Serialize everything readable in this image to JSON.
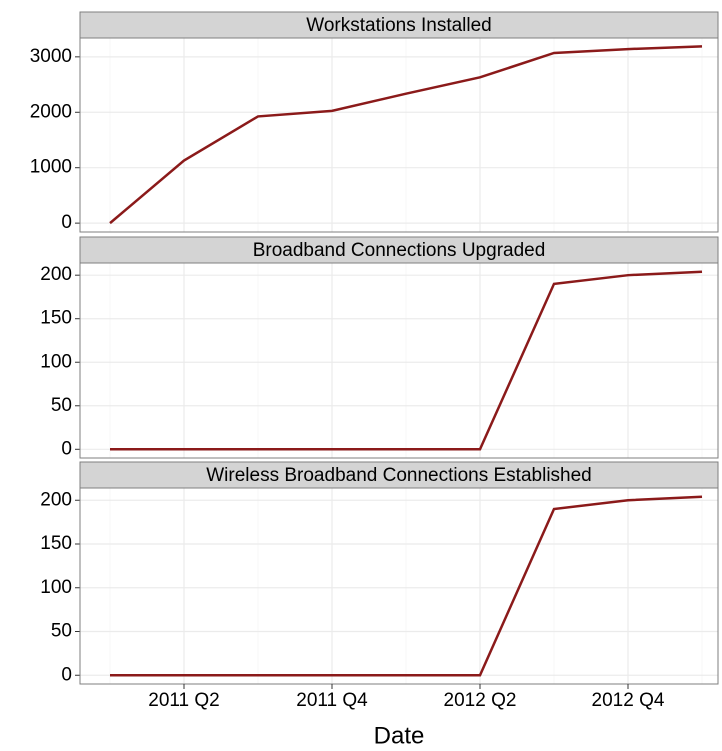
{
  "chart_data": {
    "type": "line",
    "xlabel": "Date",
    "color": "#8b1a1a",
    "grid": true,
    "categories": [
      null,
      "2011 Q2",
      null,
      "2011 Q4",
      null,
      "2012 Q2",
      null,
      "2012 Q4",
      null
    ],
    "facets": [
      {
        "title": "Workstations Installed",
        "values": [
          0,
          1130,
          1925,
          2025,
          2335,
          2630,
          3070,
          3140,
          3190
        ],
        "ylim": [
          -160,
          3340
        ],
        "yticks": [
          0,
          1000,
          2000,
          3000
        ]
      },
      {
        "title": "Broadband Connections Upgraded",
        "values": [
          0,
          0,
          0,
          0,
          0,
          0,
          190,
          200,
          204
        ],
        "ylim": [
          -10,
          214
        ],
        "yticks": [
          0,
          50,
          100,
          150,
          200
        ]
      },
      {
        "title": "Wireless Broadband Connections Established",
        "values": [
          0,
          0,
          0,
          0,
          0,
          0,
          190,
          200,
          204
        ],
        "ylim": [
          -10,
          214
        ],
        "yticks": [
          0,
          50,
          100,
          150,
          200
        ]
      }
    ]
  }
}
